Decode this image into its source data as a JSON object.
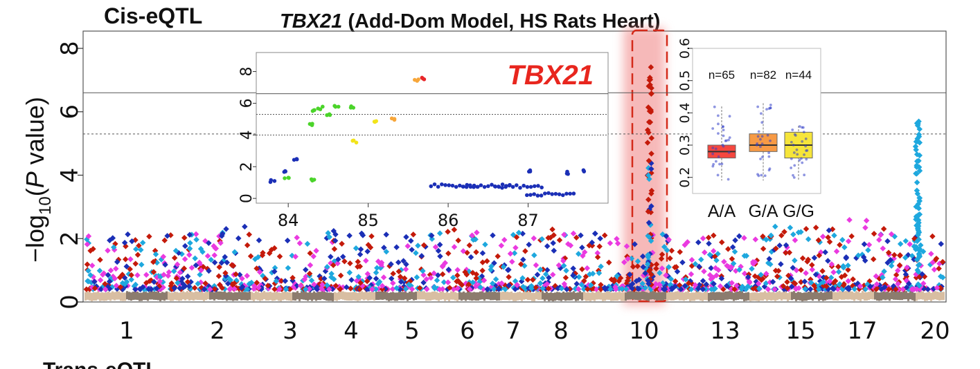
{
  "section_title": "Cis-eQTL",
  "next_section_title": "Trans-eQTL",
  "chart_data": [
    {
      "type": "scatter",
      "subtype": "manhattan",
      "title_gene": "TBX21",
      "title_rest": " (Add-Dom Model, HS Rats Heart)",
      "ylabel_prefix": "−log",
      "ylabel_sub": "10",
      "ylabel_open": "(",
      "ylabel_p": "P",
      "ylabel_close": " value)",
      "xlabel": "",
      "ylim": [
        0,
        8.5
      ],
      "yticks": [
        0,
        2,
        4,
        6,
        8
      ],
      "thresholds": [
        {
          "value": 6.6,
          "style": "solid"
        },
        {
          "value": 5.3,
          "style": "dashed"
        }
      ],
      "chromosome_labels": [
        "1",
        "2",
        "3",
        "4",
        "5",
        "6",
        "7",
        "8",
        "10",
        "13",
        "15",
        "17",
        "20"
      ],
      "highlight_chromosome": "10",
      "highlighted_peak_max": 7.6,
      "series_colors": [
        "#c41a0a",
        "#1ea8de",
        "#1b2fb6",
        "#ea3ae0"
      ],
      "baseline_colors": [
        "#d8bea2",
        "#8c7c6e"
      ],
      "chromosome_peaks": [
        {
          "chr": "1",
          "max": 2.2
        },
        {
          "chr": "2",
          "max": 2.4
        },
        {
          "chr": "3",
          "max": 2.1
        },
        {
          "chr": "4",
          "max": 2.3
        },
        {
          "chr": "5",
          "max": 2.2
        },
        {
          "chr": "6",
          "max": 2.3
        },
        {
          "chr": "7",
          "max": 2.2
        },
        {
          "chr": "8",
          "max": 2.3
        },
        {
          "chr": "10",
          "max": 7.6
        },
        {
          "chr": "13",
          "max": 2.1
        },
        {
          "chr": "15",
          "max": 2.4
        },
        {
          "chr": "17",
          "max": 2.6
        },
        {
          "chr": "20",
          "max": 5.7
        }
      ]
    },
    {
      "type": "scatter",
      "subtype": "regional-zoom",
      "label": "TBX21",
      "xticks": [
        "84",
        "85",
        "86",
        "87"
      ],
      "yticks": [
        0,
        2,
        4,
        6,
        8
      ],
      "xlim": [
        83.6,
        88.0
      ],
      "ylim": [
        -0.3,
        9.2
      ],
      "thresholds": [
        {
          "value": 6.6,
          "style": "solid"
        },
        {
          "value": 5.3,
          "style": "dashed"
        },
        {
          "value": 4.0,
          "style": "dashed"
        }
      ],
      "points": [
        {
          "x": 83.8,
          "y": 1.1,
          "color": "#1b2fb6"
        },
        {
          "x": 83.95,
          "y": 1.7,
          "color": "#1b2fb6"
        },
        {
          "x": 84.1,
          "y": 2.5,
          "color": "#1b2fb6"
        },
        {
          "x": 83.98,
          "y": 1.3,
          "color": "#4bd42a"
        },
        {
          "x": 84.3,
          "y": 1.2,
          "color": "#4bd42a"
        },
        {
          "x": 84.3,
          "y": 4.7,
          "color": "#4bd42a"
        },
        {
          "x": 84.3,
          "y": 5.6,
          "color": "#4bd42a"
        },
        {
          "x": 84.4,
          "y": 5.7,
          "color": "#4bd42a"
        },
        {
          "x": 84.5,
          "y": 5.3,
          "color": "#4bd42a"
        },
        {
          "x": 84.6,
          "y": 5.8,
          "color": "#4bd42a"
        },
        {
          "x": 84.8,
          "y": 5.8,
          "color": "#4bd42a"
        },
        {
          "x": 84.83,
          "y": 3.6,
          "color": "#f2e41a"
        },
        {
          "x": 85.1,
          "y": 4.9,
          "color": "#f2e41a"
        },
        {
          "x": 85.3,
          "y": 5.0,
          "color": "#f7a63a"
        },
        {
          "x": 85.6,
          "y": 7.5,
          "color": "#f7a63a"
        },
        {
          "x": 85.7,
          "y": 7.6,
          "color": "#e8262a"
        },
        {
          "x": 86.1,
          "y": 0.8,
          "color": "#1b2fb6"
        },
        {
          "x": 86.5,
          "y": 0.8,
          "color": "#1b2fb6"
        },
        {
          "x": 86.9,
          "y": 0.75,
          "color": "#1b2fb6"
        },
        {
          "x": 87.0,
          "y": 1.7,
          "color": "#1b2fb6"
        },
        {
          "x": 87.3,
          "y": 0.25,
          "color": "#1b2fb6"
        },
        {
          "x": 87.5,
          "y": 1.6,
          "color": "#1b2fb6"
        },
        {
          "x": 87.7,
          "y": 1.7,
          "color": "#1b2fb6"
        }
      ]
    },
    {
      "type": "box",
      "categories": [
        "A/A",
        "G/A",
        "G/G"
      ],
      "counts": [
        "n=65",
        "n=82",
        "n=44"
      ],
      "colors": [
        "#f5473f",
        "#f79a45",
        "#f6e53a"
      ],
      "ylim": [
        0.15,
        0.6
      ],
      "yticks": [
        0.2,
        0.3,
        0.4,
        0.5,
        0.6
      ],
      "boxes": [
        {
          "q1": 0.26,
          "median": 0.28,
          "q3": 0.3,
          "min": 0.19,
          "max": 0.42
        },
        {
          "q1": 0.28,
          "median": 0.3,
          "q3": 0.335,
          "min": 0.19,
          "max": 0.43
        },
        {
          "q1": 0.26,
          "median": 0.3,
          "q3": 0.34,
          "min": 0.19,
          "max": 0.36
        }
      ]
    }
  ]
}
